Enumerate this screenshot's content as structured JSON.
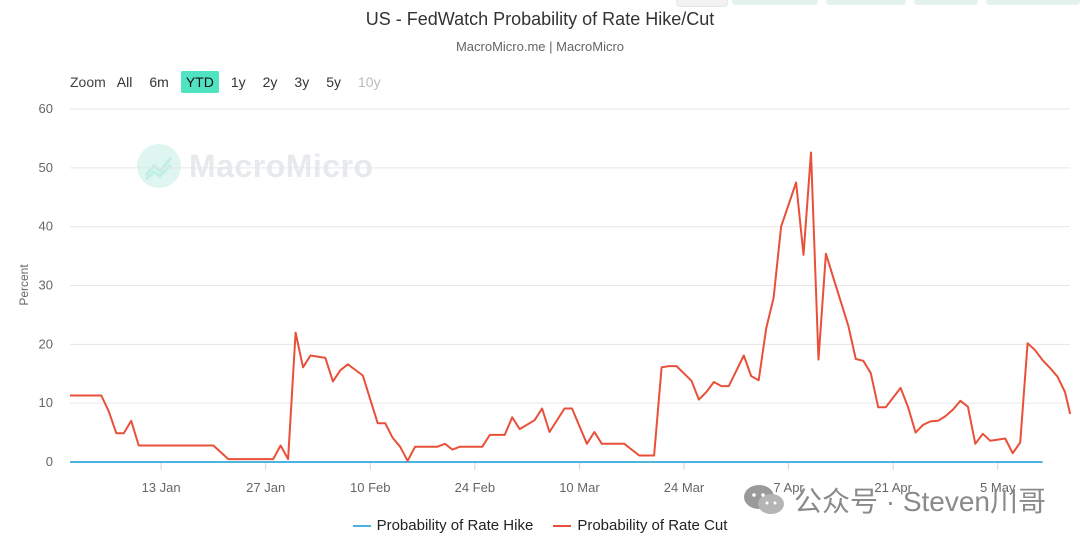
{
  "chart_data": {
    "type": "line",
    "title": "US - FedWatch Probability of Rate Hike/Cut",
    "subtitle": "MacroMicro.me | MacroMicro",
    "xlabel": "",
    "ylabel": "Percent",
    "ylim": [
      0,
      60
    ],
    "yticks": [
      0,
      10,
      20,
      30,
      40,
      50,
      60
    ],
    "xlim": [
      0,
      131
    ],
    "xticks": [
      {
        "day": 13,
        "label": "13 Jan"
      },
      {
        "day": 27,
        "label": "27 Jan"
      },
      {
        "day": 41,
        "label": "10 Feb"
      },
      {
        "day": 55,
        "label": "24 Feb"
      },
      {
        "day": 69,
        "label": "10 Mar"
      },
      {
        "day": 83,
        "label": "24 Mar"
      },
      {
        "day": 97,
        "label": "7 Apr"
      },
      {
        "day": 111,
        "label": "21 Apr"
      },
      {
        "day": 125,
        "label": "5 May"
      }
    ],
    "x_unit": "day of year 2025",
    "grid": true,
    "legend_position": "bottom",
    "series": [
      {
        "name": "Probability of Rate Hike",
        "color": "#4fb3e0",
        "points": [
          [
            0,
            0
          ],
          [
            131,
            0
          ]
        ]
      },
      {
        "name": "Probability of Rate Cut",
        "color": "#e8503a",
        "points": [
          [
            0,
            11.3
          ],
          [
            4,
            11.3
          ],
          [
            5,
            11.3
          ],
          [
            6,
            8.6
          ],
          [
            7,
            4.9
          ],
          [
            8,
            4.9
          ],
          [
            9,
            7.0
          ],
          [
            10,
            2.8
          ],
          [
            12,
            2.8
          ],
          [
            15,
            2.8
          ],
          [
            17,
            2.8
          ],
          [
            19,
            2.8
          ],
          [
            20,
            2.8
          ],
          [
            22,
            0.5
          ],
          [
            26,
            0.5
          ],
          [
            28,
            0.5
          ],
          [
            29,
            2.8
          ],
          [
            30,
            0.5
          ],
          [
            31,
            22.0
          ],
          [
            32,
            16.1
          ],
          [
            33,
            18.1
          ],
          [
            35,
            17.7
          ],
          [
            36,
            13.7
          ],
          [
            37,
            15.6
          ],
          [
            38,
            16.6
          ],
          [
            40,
            14.7
          ],
          [
            42,
            6.6
          ],
          [
            43,
            6.6
          ],
          [
            44,
            4.1
          ],
          [
            45,
            2.6
          ],
          [
            46,
            0.2
          ],
          [
            47,
            2.6
          ],
          [
            50,
            2.6
          ],
          [
            51,
            3.1
          ],
          [
            52,
            2.1
          ],
          [
            53,
            2.6
          ],
          [
            56,
            2.6
          ],
          [
            57,
            4.6
          ],
          [
            59,
            4.6
          ],
          [
            60,
            7.6
          ],
          [
            61,
            5.6
          ],
          [
            63,
            7.1
          ],
          [
            64,
            9.1
          ],
          [
            65,
            5.1
          ],
          [
            67,
            9.1
          ],
          [
            68,
            9.1
          ],
          [
            70,
            3.1
          ],
          [
            71,
            5.1
          ],
          [
            72,
            3.1
          ],
          [
            75,
            3.1
          ],
          [
            77,
            1.1
          ],
          [
            79,
            1.1
          ],
          [
            80,
            16.1
          ],
          [
            81,
            16.3
          ],
          [
            82,
            16.3
          ],
          [
            84,
            13.8
          ],
          [
            85,
            10.6
          ],
          [
            86,
            11.9
          ],
          [
            87,
            13.6
          ],
          [
            88,
            12.9
          ],
          [
            89,
            12.9
          ],
          [
            91,
            18.1
          ],
          [
            92,
            14.6
          ],
          [
            93,
            13.9
          ],
          [
            94,
            22.7
          ],
          [
            95,
            27.9
          ],
          [
            96,
            40.0
          ],
          [
            98,
            47.5
          ],
          [
            99,
            35.2
          ],
          [
            100,
            52.6
          ],
          [
            101,
            17.4
          ],
          [
            102,
            35.4
          ],
          [
            103,
            31.3
          ],
          [
            105,
            23.1
          ],
          [
            106,
            17.5
          ],
          [
            107,
            17.2
          ],
          [
            108,
            15.1
          ],
          [
            109,
            9.3
          ],
          [
            110,
            9.3
          ],
          [
            112,
            12.6
          ],
          [
            113,
            9.3
          ],
          [
            114,
            5.0
          ],
          [
            115,
            6.3
          ],
          [
            116,
            6.9
          ],
          [
            117,
            7.0
          ],
          [
            118,
            7.8
          ],
          [
            119,
            8.9
          ],
          [
            120,
            10.4
          ],
          [
            121,
            9.4
          ],
          [
            122,
            3.1
          ],
          [
            123,
            4.8
          ],
          [
            124,
            3.6
          ],
          [
            126,
            4.0
          ],
          [
            127,
            1.5
          ],
          [
            128,
            3.3
          ],
          [
            129,
            20.2
          ],
          [
            130,
            19.0
          ],
          [
            131,
            17.3
          ],
          [
            132,
            16.0
          ],
          [
            133,
            14.5
          ],
          [
            134,
            11.9
          ],
          [
            135,
            8.3
          ],
          [
            136,
            8.4
          ]
        ]
      }
    ]
  },
  "range_selector": {
    "zoom_label": "Zoom",
    "buttons": [
      {
        "label": "All",
        "state": "normal"
      },
      {
        "label": "6m",
        "state": "normal"
      },
      {
        "label": "YTD",
        "state": "selected"
      },
      {
        "label": "1y",
        "state": "normal"
      },
      {
        "label": "2y",
        "state": "normal"
      },
      {
        "label": "3y",
        "state": "normal"
      },
      {
        "label": "5y",
        "state": "normal"
      },
      {
        "label": "10y",
        "state": "disabled"
      }
    ]
  },
  "watermark": {
    "text": "MacroMicro"
  },
  "source_mark": {
    "text": "公众号 · Steven川哥"
  },
  "colors": {
    "grid": "#e6e6e6",
    "axis": "#ccd6eb",
    "selected_button": "#50e3c2",
    "top_tab": "#e3f2ee"
  }
}
